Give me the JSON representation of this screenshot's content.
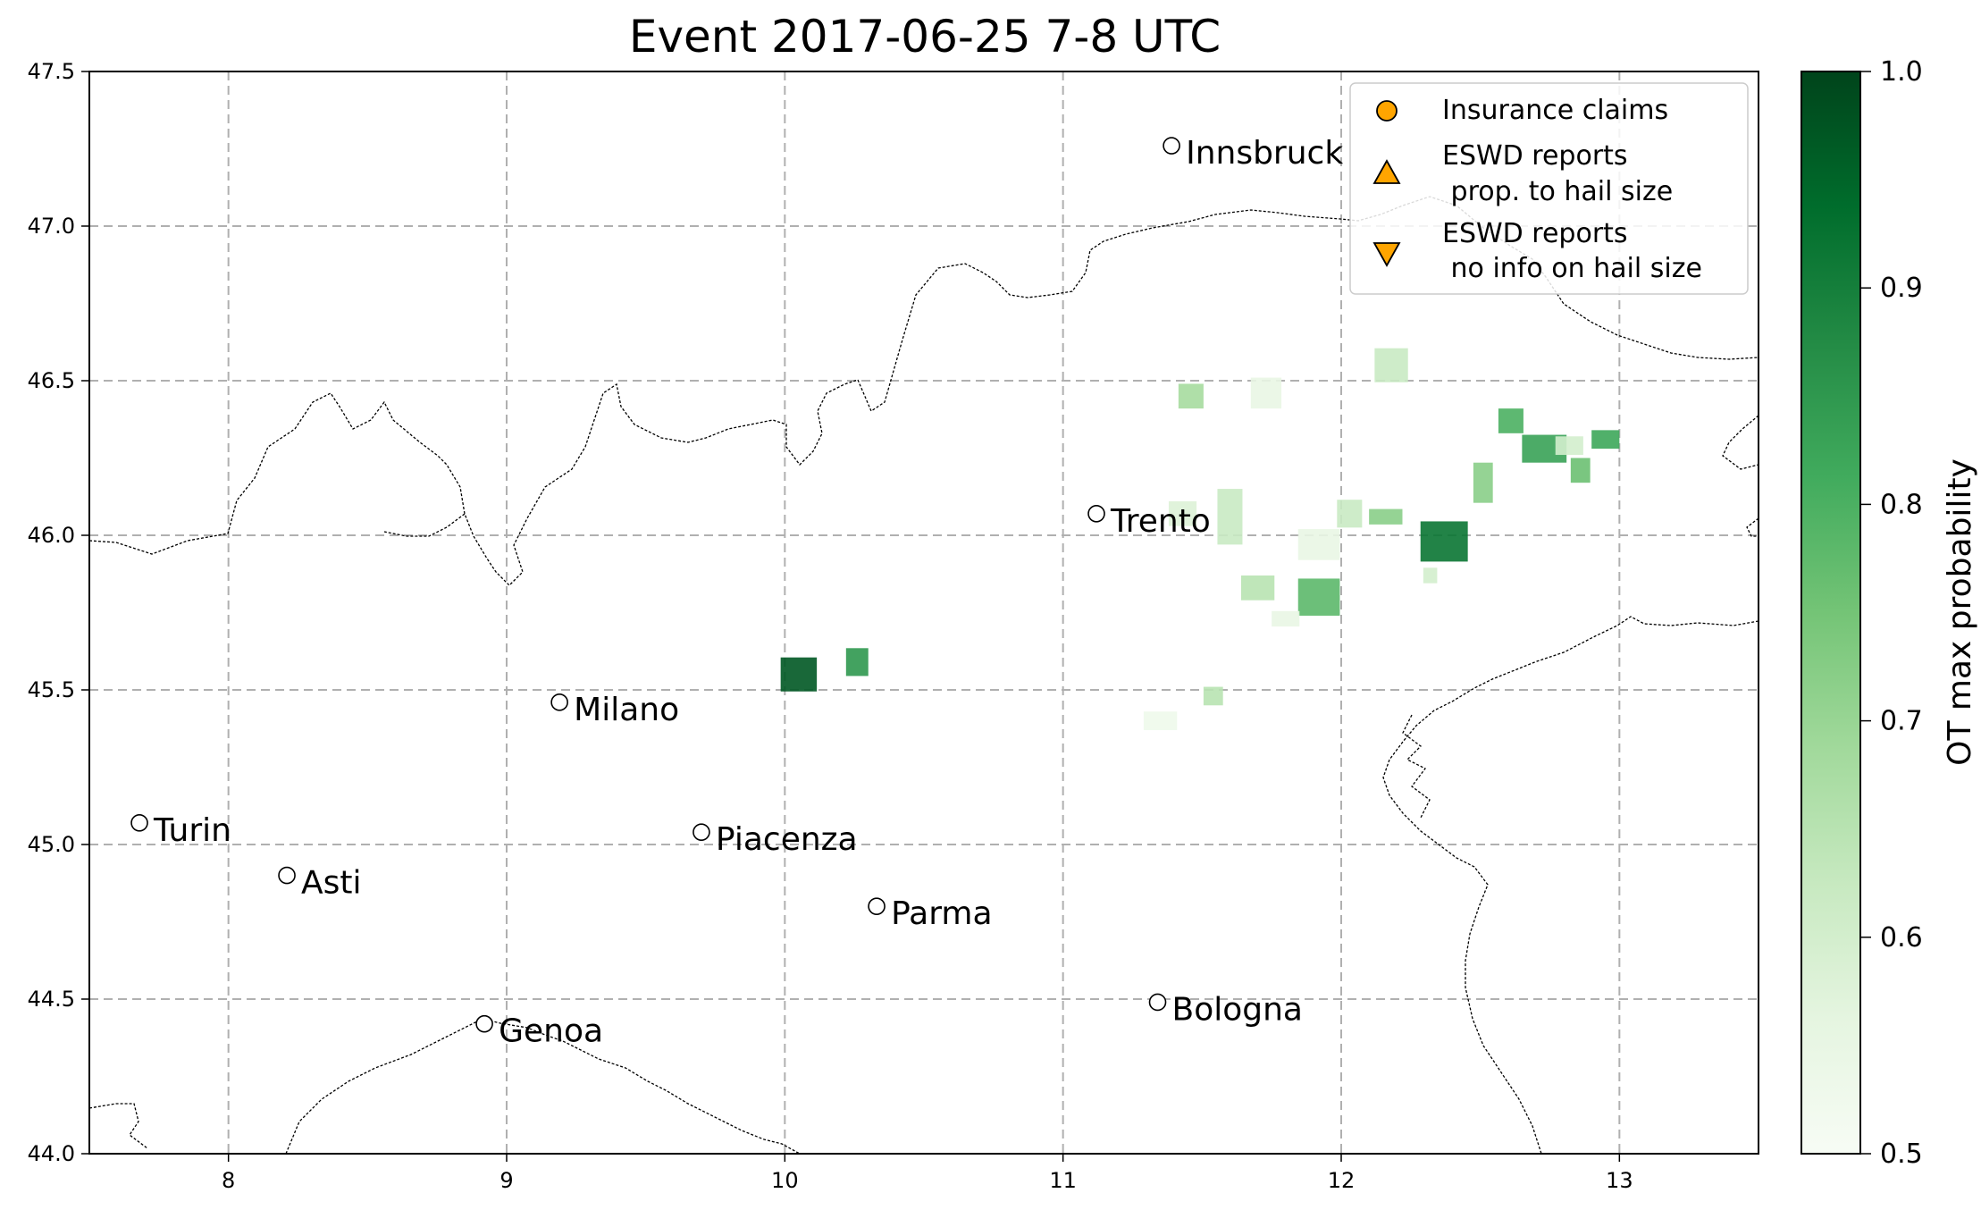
{
  "title": "Event 2017-06-25 7-8 UTC",
  "map": {
    "lon_range": [
      7.5,
      13.5
    ],
    "lat_range": [
      44.0,
      47.5
    ],
    "x_ticks": [
      "8",
      "9",
      "10",
      "11",
      "12",
      "13"
    ],
    "y_ticks": [
      "44.0",
      "44.5",
      "45.0",
      "45.5",
      "46.0",
      "46.5",
      "47.0",
      "47.5"
    ],
    "grid": true,
    "grid_style": "dashed",
    "cities": [
      {
        "name": "Innsbruck",
        "lon": 11.39,
        "lat": 47.26
      },
      {
        "name": "Trento",
        "lon": 11.12,
        "lat": 46.07
      },
      {
        "name": "Milano",
        "lon": 9.19,
        "lat": 45.46
      },
      {
        "name": "Turin",
        "lon": 7.68,
        "lat": 45.07
      },
      {
        "name": "Piacenza",
        "lon": 9.7,
        "lat": 45.04
      },
      {
        "name": "Asti",
        "lon": 8.21,
        "lat": 44.9
      },
      {
        "name": "Parma",
        "lon": 10.33,
        "lat": 44.8
      },
      {
        "name": "Bologna",
        "lon": 11.34,
        "lat": 44.49
      },
      {
        "name": "Genoa",
        "lon": 8.92,
        "lat": 44.42
      }
    ],
    "ot_cells": [
      {
        "lon": 10.05,
        "lat": 45.55,
        "dlon": 0.13,
        "dlat": 0.11,
        "p": 0.97
      },
      {
        "lon": 10.26,
        "lat": 45.59,
        "dlon": 0.08,
        "dlat": 0.09,
        "p": 0.85
      },
      {
        "lon": 12.37,
        "lat": 45.98,
        "dlon": 0.17,
        "dlat": 0.13,
        "p": 0.92
      },
      {
        "lon": 11.92,
        "lat": 45.8,
        "dlon": 0.15,
        "dlat": 0.12,
        "p": 0.78
      },
      {
        "lon": 12.73,
        "lat": 46.28,
        "dlon": 0.16,
        "dlat": 0.09,
        "p": 0.83
      },
      {
        "lon": 12.61,
        "lat": 46.37,
        "dlon": 0.09,
        "dlat": 0.08,
        "p": 0.8
      },
      {
        "lon": 12.95,
        "lat": 46.31,
        "dlon": 0.1,
        "dlat": 0.06,
        "p": 0.82
      },
      {
        "lon": 12.86,
        "lat": 46.21,
        "dlon": 0.07,
        "dlat": 0.08,
        "p": 0.76
      },
      {
        "lon": 12.82,
        "lat": 46.29,
        "dlon": 0.1,
        "dlat": 0.06,
        "p": 0.6
      },
      {
        "lon": 12.51,
        "lat": 46.17,
        "dlon": 0.07,
        "dlat": 0.13,
        "p": 0.72
      },
      {
        "lon": 12.18,
        "lat": 46.55,
        "dlon": 0.12,
        "dlat": 0.11,
        "p": 0.62
      },
      {
        "lon": 11.46,
        "lat": 46.45,
        "dlon": 0.09,
        "dlat": 0.08,
        "p": 0.68
      },
      {
        "lon": 11.73,
        "lat": 46.46,
        "dlon": 0.11,
        "dlat": 0.1,
        "p": 0.55
      },
      {
        "lon": 11.6,
        "lat": 46.06,
        "dlon": 0.09,
        "dlat": 0.18,
        "p": 0.62
      },
      {
        "lon": 11.43,
        "lat": 46.07,
        "dlon": 0.1,
        "dlat": 0.08,
        "p": 0.58
      },
      {
        "lon": 12.03,
        "lat": 46.07,
        "dlon": 0.09,
        "dlat": 0.09,
        "p": 0.62
      },
      {
        "lon": 11.92,
        "lat": 45.97,
        "dlon": 0.15,
        "dlat": 0.1,
        "p": 0.55
      },
      {
        "lon": 12.16,
        "lat": 46.06,
        "dlon": 0.12,
        "dlat": 0.05,
        "p": 0.72
      },
      {
        "lon": 11.7,
        "lat": 45.83,
        "dlon": 0.12,
        "dlat": 0.08,
        "p": 0.65
      },
      {
        "lon": 11.8,
        "lat": 45.73,
        "dlon": 0.1,
        "dlat": 0.05,
        "p": 0.55
      },
      {
        "lon": 12.32,
        "lat": 45.87,
        "dlon": 0.05,
        "dlat": 0.05,
        "p": 0.6
      },
      {
        "lon": 11.54,
        "lat": 45.48,
        "dlon": 0.07,
        "dlat": 0.06,
        "p": 0.65
      },
      {
        "lon": 11.35,
        "lat": 45.4,
        "dlon": 0.12,
        "dlat": 0.06,
        "p": 0.53
      }
    ]
  },
  "legend": {
    "items": [
      {
        "marker": "circle",
        "line1": "Insurance claims",
        "line2": ""
      },
      {
        "marker": "triangle-up",
        "line1": "ESWD reports",
        "line2": " prop. to hail size"
      },
      {
        "marker": "triangle-down",
        "line1": "ESWD reports",
        "line2": " no info on hail size"
      }
    ],
    "location": "upper right",
    "marker_color": "#FFA500"
  },
  "colorbar": {
    "label": "OT max probability",
    "ticks": [
      "0.5",
      "0.6",
      "0.7",
      "0.8",
      "0.9",
      "1.0"
    ],
    "range": [
      0.5,
      1.0
    ],
    "colormap": "Greens",
    "colors": [
      "#f7fcf5",
      "#e5f5e0",
      "#c7e9c0",
      "#a1d99b",
      "#74c476",
      "#41ab5d",
      "#238b45",
      "#006d2c",
      "#00441b"
    ]
  }
}
